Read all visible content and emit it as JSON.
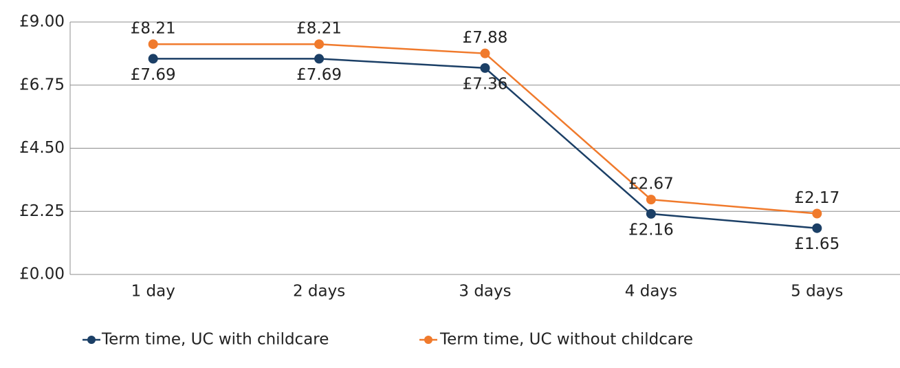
{
  "chart_data": {
    "type": "line",
    "categories": [
      "1 day",
      "2 days",
      "3 days",
      "4 days",
      "5 days"
    ],
    "series": [
      {
        "name": "Term time, UC with childcare",
        "color": "#1b3f66",
        "values": [
          7.69,
          7.69,
          7.36,
          2.16,
          1.65
        ],
        "value_labels": [
          "£7.69",
          "£7.69",
          "£7.36",
          "£2.16",
          "£1.65"
        ]
      },
      {
        "name": "Term time, UC without childcare",
        "color": "#f07a2c",
        "values": [
          8.21,
          8.21,
          7.88,
          2.67,
          2.17
        ],
        "value_labels": [
          "£8.21",
          "£8.21",
          "£7.88",
          "£2.67",
          "£2.17"
        ]
      }
    ],
    "ylim": [
      0,
      9
    ],
    "yticks": [
      {
        "value": 0,
        "label": "£0.00"
      },
      {
        "value": 2.25,
        "label": "£2.25"
      },
      {
        "value": 4.5,
        "label": "£4.50"
      },
      {
        "value": 6.75,
        "label": "£6.75"
      },
      {
        "value": 9,
        "label": "£9.00"
      }
    ],
    "grid": true,
    "legend": "bottom"
  }
}
